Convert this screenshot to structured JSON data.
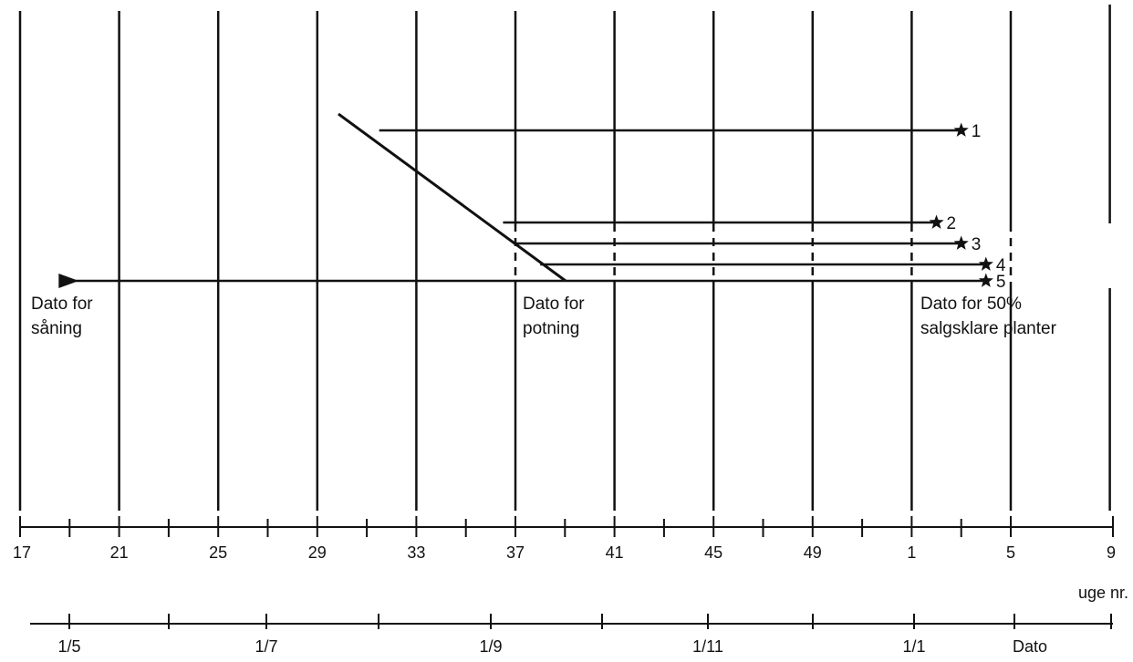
{
  "labels": {
    "sowing": [
      "Dato for",
      "såning"
    ],
    "potting": [
      "Dato for",
      "potning"
    ],
    "ready": [
      "Dato for 50%",
      "salgsklare planter"
    ]
  },
  "week_axis": {
    "label": "uge nr.",
    "ticks": [
      "17",
      "21",
      "25",
      "29",
      "33",
      "37",
      "41",
      "45",
      "49",
      "1",
      "5",
      "9"
    ]
  },
  "date_axis": {
    "label": "Dato",
    "ticks": [
      "1/5",
      "1/7",
      "1/9",
      "1/11",
      "1/1"
    ]
  },
  "schedules": [
    {
      "id": "1",
      "potting_week": 31.5,
      "ready_week": 55
    },
    {
      "id": "2",
      "potting_week": 36.5,
      "ready_week": 54
    },
    {
      "id": "3",
      "potting_week": 37,
      "ready_week": 55
    },
    {
      "id": "4",
      "potting_week": 38,
      "ready_week": 56
    },
    {
      "id": "5",
      "potting_week": 39,
      "ready_week": 56
    }
  ],
  "sowing_week": 19
}
